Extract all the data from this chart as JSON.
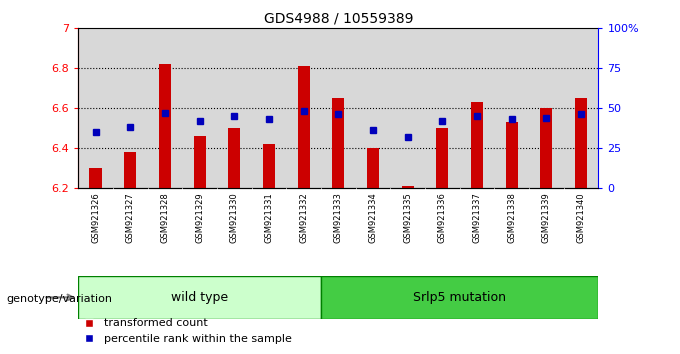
{
  "title": "GDS4988 / 10559389",
  "samples": [
    "GSM921326",
    "GSM921327",
    "GSM921328",
    "GSM921329",
    "GSM921330",
    "GSM921331",
    "GSM921332",
    "GSM921333",
    "GSM921334",
    "GSM921335",
    "GSM921336",
    "GSM921337",
    "GSM921338",
    "GSM921339",
    "GSM921340"
  ],
  "transformed_count": [
    6.3,
    6.38,
    6.82,
    6.46,
    6.5,
    6.42,
    6.81,
    6.65,
    6.4,
    6.21,
    6.5,
    6.63,
    6.53,
    6.6,
    6.65
  ],
  "percentile_rank": [
    35,
    38,
    47,
    42,
    45,
    43,
    48,
    46,
    36,
    32,
    42,
    45,
    43,
    44,
    46
  ],
  "wt_count": 7,
  "mut_count": 8,
  "ylim_left": [
    6.2,
    7.0
  ],
  "ylim_right": [
    0,
    100
  ],
  "yticks_left": [
    6.2,
    6.4,
    6.6,
    6.8,
    7.0
  ],
  "ytick_labels_left": [
    "6.2",
    "6.4",
    "6.6",
    "6.8",
    "7"
  ],
  "yticks_right": [
    0,
    25,
    50,
    75,
    100
  ],
  "ytick_labels_right": [
    "0",
    "25",
    "50",
    "75",
    "100%"
  ],
  "bar_color": "#CC0000",
  "dot_color": "#0000BB",
  "bg_plot": "#D8D8D8",
  "wt_color": "#CCFFCC",
  "mut_color": "#44CC44",
  "border_color": "#000000",
  "legend_labels": [
    "transformed count",
    "percentile rank within the sample"
  ],
  "genotype_label": "genotype/variation",
  "wt_label": "wild type",
  "mut_label": "Srlp5 mutation"
}
